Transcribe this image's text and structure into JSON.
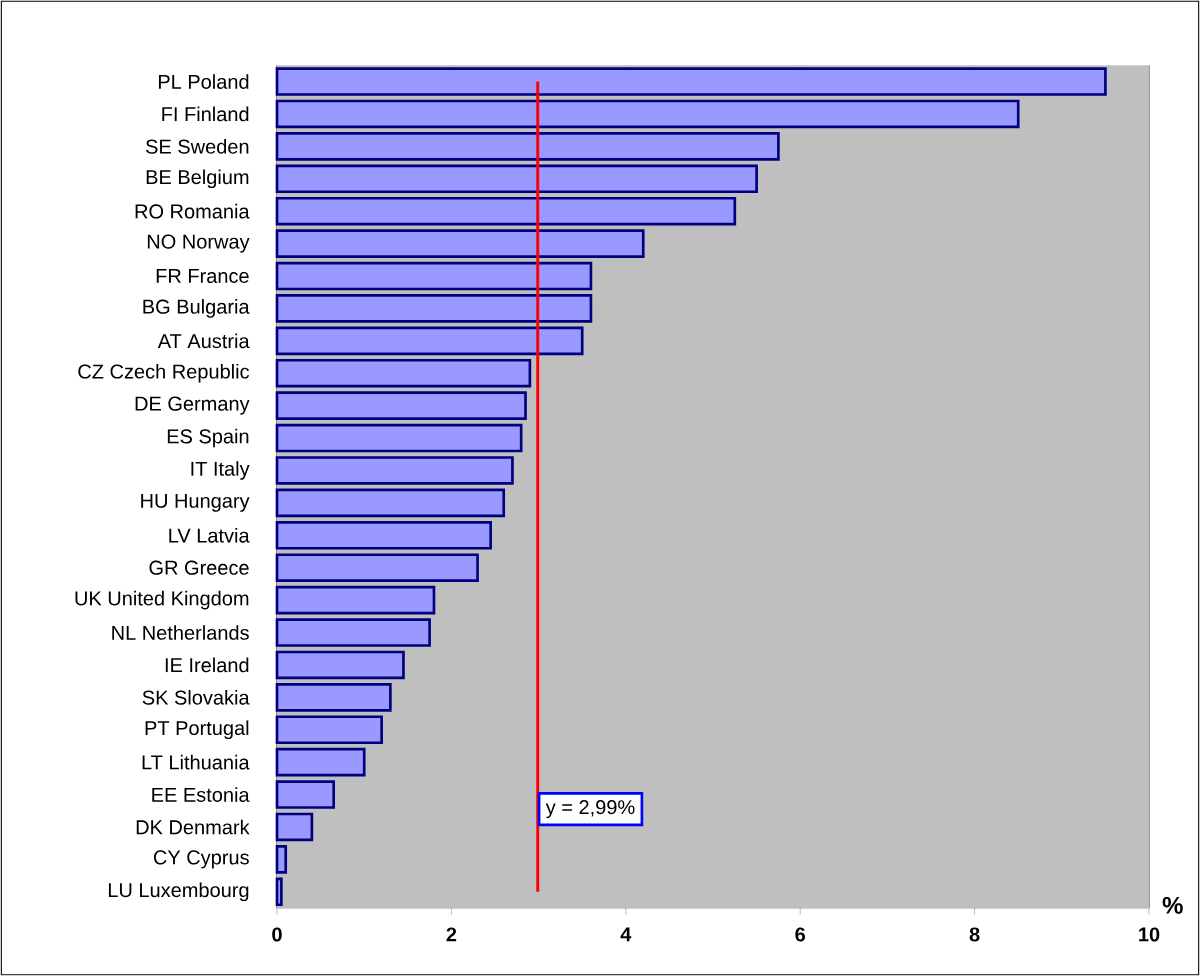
{
  "chart_data": {
    "type": "bar",
    "orientation": "horizontal",
    "xlabel": "%",
    "categories": [
      "PL Poland",
      "FI Finland",
      "SE Sweden",
      "BE Belgium",
      "RO Romania",
      "NO Norway",
      "FR France",
      "BG Bulgaria",
      "AT Austria",
      "CZ Czech Republic",
      "DE Germany",
      "ES Spain",
      "IT Italy",
      "HU Hungary",
      "LV Latvia",
      "GR Greece",
      "UK United Kingdom",
      "NL Netherlands",
      "IE Ireland",
      "SK Slovakia",
      "PT Portugal",
      "LT Lithuania",
      "EE Estonia",
      "DK Denmark",
      "CY Cyprus",
      "LU Luxembourg"
    ],
    "values": [
      9.5,
      8.5,
      5.75,
      5.5,
      5.25,
      4.2,
      3.6,
      3.6,
      3.5,
      2.9,
      2.85,
      2.8,
      2.7,
      2.6,
      2.45,
      2.3,
      1.8,
      1.75,
      1.45,
      1.3,
      1.2,
      1.0,
      0.65,
      0.4,
      0.1,
      0.05
    ],
    "color": "#9999ff",
    "xlim": [
      0,
      10
    ],
    "xticks": [
      0,
      2,
      4,
      6,
      8,
      10
    ],
    "grid": "x",
    "ref_lines": [
      {
        "axis": "x",
        "value": 2.99,
        "label": "y = 2,99%",
        "color": "#ff0000"
      }
    ]
  }
}
